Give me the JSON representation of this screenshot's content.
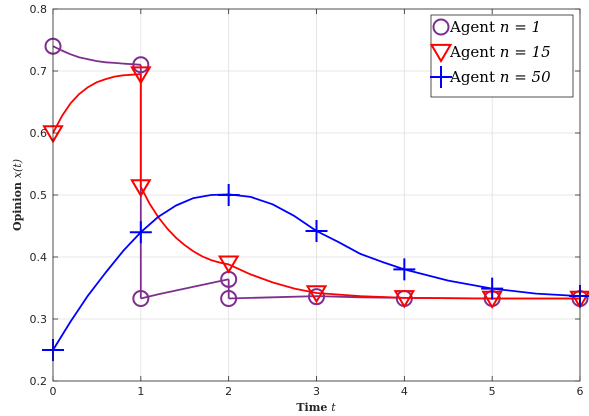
{
  "chart_data": {
    "type": "line",
    "xlabel": "Time",
    "xlabel_var": "t",
    "ylabel": "Opinion",
    "ylabel_var": "x(t)",
    "xlim": [
      0,
      6
    ],
    "ylim": [
      0.2,
      0.8
    ],
    "x_ticks": [
      "0",
      "1",
      "2",
      "3",
      "4",
      "5",
      "6"
    ],
    "y_ticks": [
      "0.2",
      "0.3",
      "0.4",
      "0.5",
      "0.6",
      "0.7",
      "0.8"
    ],
    "grid": true,
    "legend_position": "top-right",
    "series": [
      {
        "name_prefix": "Agent",
        "name_math": "n = 1",
        "color": "#7e2f8e",
        "marker": "circle",
        "markers": [
          [
            0,
            0.74
          ],
          [
            1,
            0.71
          ],
          [
            1,
            0.333
          ],
          [
            2,
            0.364
          ],
          [
            2,
            0.333
          ],
          [
            3,
            0.336
          ],
          [
            4,
            0.333
          ],
          [
            5,
            0.333
          ],
          [
            6,
            0.333
          ]
        ],
        "segments": [
          [
            [
              0,
              0.74
            ],
            [
              0.1,
              0.733
            ],
            [
              0.2,
              0.727
            ],
            [
              0.3,
              0.722
            ],
            [
              0.4,
              0.719
            ],
            [
              0.5,
              0.716
            ],
            [
              0.6,
              0.714
            ],
            [
              0.7,
              0.713
            ],
            [
              0.8,
              0.712
            ],
            [
              0.9,
              0.711
            ],
            [
              1,
              0.71
            ]
          ],
          [
            [
              1,
              0.71
            ],
            [
              1,
              0.333
            ]
          ],
          [
            [
              1,
              0.333
            ],
            [
              1.2,
              0.34
            ],
            [
              1.4,
              0.346
            ],
            [
              1.6,
              0.352
            ],
            [
              1.8,
              0.358
            ],
            [
              2,
              0.364
            ]
          ],
          [
            [
              2,
              0.364
            ],
            [
              2,
              0.333
            ]
          ],
          [
            [
              2,
              0.333
            ],
            [
              2.5,
              0.335
            ],
            [
              3,
              0.337
            ],
            [
              3.5,
              0.335
            ],
            [
              4,
              0.334
            ],
            [
              5,
              0.333
            ],
            [
              6,
              0.333
            ]
          ]
        ]
      },
      {
        "name_prefix": "Agent",
        "name_math": "n = 15",
        "color": "#ff0000",
        "marker": "triangle-down",
        "markers": [
          [
            0,
            0.6
          ],
          [
            1,
            0.695
          ],
          [
            1,
            0.513
          ],
          [
            2,
            0.39
          ],
          [
            3,
            0.342
          ],
          [
            4,
            0.334
          ],
          [
            5,
            0.333
          ],
          [
            6,
            0.333
          ]
        ],
        "segments": [
          [
            [
              0,
              0.6
            ],
            [
              0.1,
              0.627
            ],
            [
              0.2,
              0.648
            ],
            [
              0.3,
              0.663
            ],
            [
              0.4,
              0.674
            ],
            [
              0.5,
              0.682
            ],
            [
              0.6,
              0.687
            ],
            [
              0.7,
              0.691
            ],
            [
              0.8,
              0.693
            ],
            [
              0.9,
              0.694
            ],
            [
              1,
              0.695
            ]
          ],
          [
            [
              1,
              0.695
            ],
            [
              1,
              0.513
            ]
          ],
          [
            [
              1,
              0.513
            ],
            [
              1.1,
              0.486
            ],
            [
              1.2,
              0.464
            ],
            [
              1.3,
              0.446
            ],
            [
              1.4,
              0.431
            ],
            [
              1.5,
              0.419
            ],
            [
              1.6,
              0.409
            ],
            [
              1.7,
              0.401
            ],
            [
              1.8,
              0.395
            ],
            [
              1.9,
              0.391
            ],
            [
              2,
              0.388
            ],
            [
              2.25,
              0.372
            ],
            [
              2.5,
              0.359
            ],
            [
              2.75,
              0.349
            ],
            [
              3,
              0.342
            ],
            [
              3.5,
              0.337
            ],
            [
              4,
              0.334
            ],
            [
              5,
              0.333
            ],
            [
              6,
              0.333
            ]
          ]
        ]
      },
      {
        "name_prefix": "Agent",
        "name_math": "n = 50",
        "color": "#0000ff",
        "marker": "plus",
        "markers": [
          [
            0,
            0.25
          ],
          [
            1,
            0.44
          ],
          [
            2,
            0.5
          ],
          [
            3,
            0.442
          ],
          [
            4,
            0.38
          ],
          [
            5,
            0.349
          ],
          [
            6,
            0.337
          ]
        ],
        "segments": [
          [
            [
              0,
              0.25
            ],
            [
              0.2,
              0.296
            ],
            [
              0.4,
              0.338
            ],
            [
              0.6,
              0.375
            ],
            [
              0.8,
              0.41
            ],
            [
              1,
              0.44
            ],
            [
              1.2,
              0.465
            ],
            [
              1.4,
              0.483
            ],
            [
              1.6,
              0.495
            ],
            [
              1.8,
              0.5
            ],
            [
              2,
              0.501
            ],
            [
              2.25,
              0.497
            ],
            [
              2.5,
              0.485
            ],
            [
              2.75,
              0.466
            ],
            [
              3,
              0.442
            ],
            [
              3.25,
              0.424
            ],
            [
              3.5,
              0.405
            ],
            [
              3.75,
              0.392
            ],
            [
              4,
              0.38
            ],
            [
              4.5,
              0.362
            ],
            [
              5,
              0.349
            ],
            [
              5.5,
              0.341
            ],
            [
              6,
              0.337
            ]
          ]
        ]
      }
    ]
  }
}
